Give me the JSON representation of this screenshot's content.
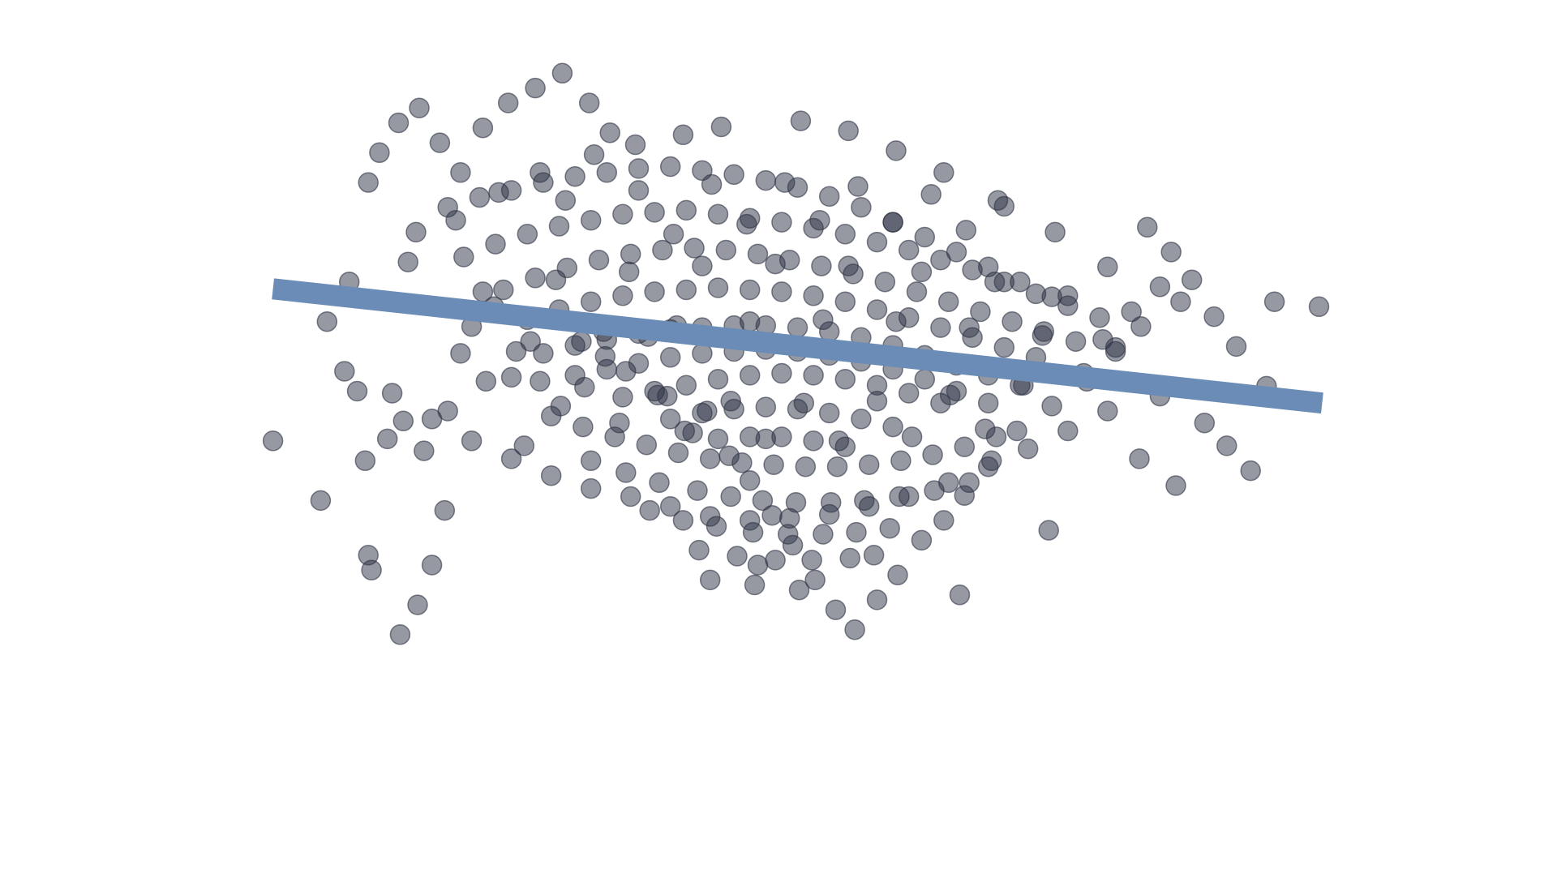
{
  "chart_data": {
    "type": "scatter",
    "title": "",
    "xlabel": "",
    "ylabel": "",
    "grid": false,
    "xlim": [
      -3.3,
      3.5
    ],
    "ylim": [
      -3.2,
      3.0
    ],
    "colors": {
      "points": "#2e3445",
      "fit_line": "#6b8cb6"
    },
    "fit_line": {
      "x": [
        -3.2,
        3.4
      ],
      "y": [
        0.73,
        -0.42
      ]
    },
    "series": [
      {
        "x": [
          -3.2,
          -2.9,
          -2.6,
          -2.58,
          -2.86,
          -2.72,
          -2.67,
          -2.38,
          -2.25,
          -2.12,
          -2.2,
          -2.4,
          -2.29,
          -2.6,
          -2.53,
          -2.41,
          -2.28,
          -2.15,
          -2.02,
          -1.88,
          -1.72,
          -1.55,
          -1.38,
          -1.21,
          -1.08,
          -1.95,
          -1.81,
          -1.67,
          -1.52,
          -1.39,
          -1.26,
          -1.11,
          -0.98,
          -0.84,
          -0.72,
          -0.61,
          -0.47,
          -0.33,
          -0.2,
          -0.06,
          0.07,
          0.21,
          0.34,
          0.46,
          0.6,
          0.73,
          0.88,
          1.02,
          1.15,
          1.32,
          1.48,
          1.7,
          1.92,
          2.1,
          2.26,
          2.51,
          2.72,
          2.86,
          3.05,
          3.38,
          -2.3,
          -2.1,
          -1.9,
          -1.7,
          -1.5,
          -1.3,
          -1.1,
          -0.9,
          -0.7,
          -0.5,
          -0.3,
          -0.1,
          0.1,
          0.3,
          0.5,
          0.7,
          0.9,
          1.1,
          1.3,
          1.5,
          1.7,
          -2.0,
          -1.8,
          -1.6,
          -1.4,
          -1.2,
          -1.0,
          -0.8,
          -0.6,
          -0.4,
          -0.2,
          0.0,
          0.2,
          0.4,
          0.6,
          0.8,
          1.0,
          1.2,
          1.4,
          1.6,
          1.8,
          2.0,
          -1.75,
          -1.55,
          -1.35,
          -1.15,
          -0.95,
          -0.75,
          -0.55,
          -0.35,
          -0.15,
          0.05,
          0.25,
          0.45,
          0.65,
          0.85,
          1.05,
          1.25,
          1.45,
          1.65,
          1.85,
          -1.6,
          -1.4,
          -1.2,
          -1.0,
          -0.8,
          -0.6,
          -0.4,
          -0.2,
          0.0,
          0.2,
          0.4,
          0.6,
          0.8,
          1.0,
          1.2,
          1.4,
          1.6,
          -1.5,
          -1.3,
          -1.1,
          -0.9,
          -0.7,
          -0.5,
          -0.3,
          -0.1,
          0.1,
          0.3,
          0.5,
          0.7,
          0.9,
          1.1,
          1.3,
          1.5,
          -1.3,
          -1.1,
          -0.9,
          -0.7,
          -0.5,
          -0.3,
          -0.1,
          0.1,
          0.3,
          0.5,
          0.7,
          0.9,
          1.1,
          1.3,
          -1.0,
          -0.8,
          -0.6,
          -0.4,
          -0.2,
          0.0,
          0.2,
          0.4,
          0.6,
          0.8,
          1.0,
          -0.7,
          -0.5,
          -0.3,
          -0.1,
          0.1,
          0.3,
          0.5,
          0.7,
          -0.4,
          -0.2,
          0.0,
          0.2,
          0.4,
          -1.45,
          -1.25,
          -1.05,
          -0.85,
          -0.65,
          -0.45,
          -0.25,
          -0.05,
          0.15,
          0.35,
          0.55,
          0.75,
          0.95,
          1.15,
          1.35,
          -1.2,
          -0.98,
          -0.77,
          -0.53,
          -0.32,
          -0.12,
          0.09,
          0.31,
          0.52,
          0.74,
          0.96,
          1.18,
          -0.83,
          -0.62,
          -0.41,
          -0.18,
          0.04,
          0.26,
          0.47,
          0.68,
          -0.52,
          -0.28,
          -0.04,
          0.19,
          0.43,
          -0.17,
          0.11,
          2.3,
          2.45,
          2.58,
          2.2,
          2.02,
          1.9,
          2.38,
          2.66,
          2.8,
          2.95,
          3.1,
          2.25,
          2.48,
          -2.35,
          -2.05,
          -1.78,
          -1.52,
          -1.18,
          -0.92,
          -0.62,
          -0.38,
          0.12,
          0.42,
          0.72,
          1.02,
          1.36,
          1.72,
          2.05,
          2.38,
          -2.62,
          -2.48,
          -2.1,
          -1.86,
          -1.62,
          -0.45,
          -0.15,
          0.58,
          1.12,
          1.68,
          -2.75,
          -2.45,
          -2.2,
          -1.95,
          -1.7,
          -1.45,
          -1.2,
          -0.95,
          -0.7,
          -0.45,
          -0.2,
          0.05,
          0.3,
          0.55,
          0.8,
          1.05,
          1.3,
          1.55,
          1.8,
          2.05,
          -2.02,
          -1.58,
          -1.12,
          -0.66,
          -0.2,
          0.26,
          0.72,
          1.18,
          1.64,
          2.1,
          -1.88,
          -1.42,
          -0.96,
          -0.5,
          -0.04,
          0.42,
          0.88,
          1.34,
          1.8,
          -1.7,
          -1.24,
          -0.78,
          -0.32,
          0.14,
          0.6,
          1.06,
          1.52,
          -1.36,
          -0.9,
          -0.44,
          0.02,
          0.48,
          0.94,
          1.4,
          -1.02,
          -0.56,
          -0.1,
          0.36,
          0.82,
          1.28,
          -0.68,
          -0.22,
          0.24,
          0.7,
          1.16
        ],
        "y": [
          -0.8,
          -1.4,
          -1.95,
          -2.1,
          0.4,
          0.8,
          -0.3,
          -0.6,
          -0.9,
          -1.5,
          -2.05,
          -2.75,
          -2.45,
          1.8,
          2.1,
          2.4,
          2.55,
          2.2,
          1.9,
          2.35,
          2.6,
          2.75,
          2.9,
          2.6,
          2.3,
          0.35,
          0.55,
          0.1,
          -0.2,
          -0.45,
          0.2,
          0.05,
          -0.1,
          0.25,
          -0.35,
          -0.7,
          -0.5,
          -0.95,
          -1.2,
          -1.55,
          -1.85,
          -2.2,
          -2.5,
          -2.7,
          -2.4,
          -2.15,
          -1.8,
          -1.6,
          -1.35,
          -1.0,
          -0.7,
          -0.45,
          -0.2,
          0.1,
          0.35,
          0.6,
          0.45,
          0.15,
          -0.25,
          0.55,
          1.3,
          1.55,
          1.65,
          1.72,
          1.8,
          1.86,
          1.9,
          1.94,
          1.96,
          1.92,
          1.88,
          1.82,
          1.75,
          1.66,
          1.55,
          1.4,
          1.25,
          1.1,
          0.95,
          0.8,
          0.65,
          1.05,
          1.18,
          1.28,
          1.36,
          1.42,
          1.48,
          1.5,
          1.52,
          1.48,
          1.44,
          1.4,
          1.34,
          1.28,
          1.2,
          1.12,
          1.02,
          0.92,
          0.8,
          0.68,
          0.56,
          0.44,
          0.72,
          0.84,
          0.94,
          1.02,
          1.08,
          1.12,
          1.14,
          1.12,
          1.08,
          1.02,
          0.96,
          0.88,
          0.8,
          0.7,
          0.6,
          0.5,
          0.4,
          0.3,
          0.2,
          0.42,
          0.52,
          0.6,
          0.66,
          0.7,
          0.72,
          0.74,
          0.72,
          0.7,
          0.66,
          0.6,
          0.52,
          0.44,
          0.34,
          0.24,
          0.14,
          0.04,
          0.08,
          0.16,
          0.22,
          0.28,
          0.32,
          0.34,
          0.36,
          0.36,
          0.34,
          0.3,
          0.24,
          0.16,
          0.06,
          -0.04,
          -0.14,
          -0.24,
          -0.14,
          -0.08,
          -0.02,
          0.04,
          0.08,
          0.1,
          0.12,
          0.1,
          0.06,
          0.0,
          -0.08,
          -0.18,
          -0.3,
          -0.42,
          -0.36,
          -0.3,
          -0.24,
          -0.18,
          -0.14,
          -0.12,
          -0.14,
          -0.18,
          -0.24,
          -0.32,
          -0.42,
          -0.58,
          -0.52,
          -0.48,
          -0.46,
          -0.48,
          -0.52,
          -0.58,
          -0.66,
          -0.78,
          -0.76,
          -0.76,
          -0.8,
          -0.86,
          -0.55,
          -0.66,
          -0.76,
          -0.84,
          -0.92,
          -0.98,
          -1.02,
          -1.04,
          -1.06,
          -1.06,
          -1.04,
          -1.0,
          -0.94,
          -0.86,
          -0.76,
          -1.0,
          -1.12,
          -1.22,
          -1.3,
          -1.36,
          -1.4,
          -1.42,
          -1.42,
          -1.4,
          -1.36,
          -1.3,
          -1.22,
          -1.5,
          -1.6,
          -1.66,
          -1.72,
          -1.74,
          -1.74,
          -1.72,
          -1.68,
          -1.9,
          -1.96,
          -2.0,
          -2.0,
          -1.98,
          -2.25,
          -2.3,
          1.35,
          1.1,
          0.82,
          0.5,
          0.22,
          -0.12,
          -0.35,
          -0.62,
          -0.85,
          -1.1,
          0.6,
          -0.98,
          -1.25,
          1.0,
          1.42,
          1.7,
          1.9,
          2.08,
          2.18,
          2.28,
          2.36,
          2.42,
          2.32,
          2.12,
          1.9,
          1.62,
          1.3,
          0.95,
          0.75,
          -1.0,
          -0.78,
          -0.5,
          -0.2,
          -0.85,
          -2.2,
          -2.05,
          -1.95,
          -2.35,
          -1.7,
          -0.1,
          -0.32,
          -0.58,
          -0.8,
          -0.98,
          -1.15,
          -1.28,
          -1.36,
          -1.46,
          -1.56,
          -1.6,
          -1.58,
          -1.54,
          -1.46,
          -1.36,
          -1.22,
          -1.06,
          -0.88,
          -0.7,
          -0.5,
          0.08,
          0.2,
          0.3,
          0.36,
          0.4,
          0.42,
          0.4,
          0.34,
          0.26,
          0.14,
          0.7,
          0.82,
          0.9,
          0.96,
          0.98,
          0.96,
          0.9,
          0.8,
          0.66,
          -0.16,
          -0.26,
          -0.34,
          -0.4,
          -0.42,
          -0.4,
          -0.34,
          -0.24,
          1.62,
          1.72,
          1.78,
          1.8,
          1.76,
          1.68,
          1.56,
          -0.62,
          -0.72,
          -0.78,
          -0.8,
          -0.76,
          -0.68,
          1.28,
          1.38,
          1.42,
          1.4,
          1.32
        ]
      }
    ]
  }
}
